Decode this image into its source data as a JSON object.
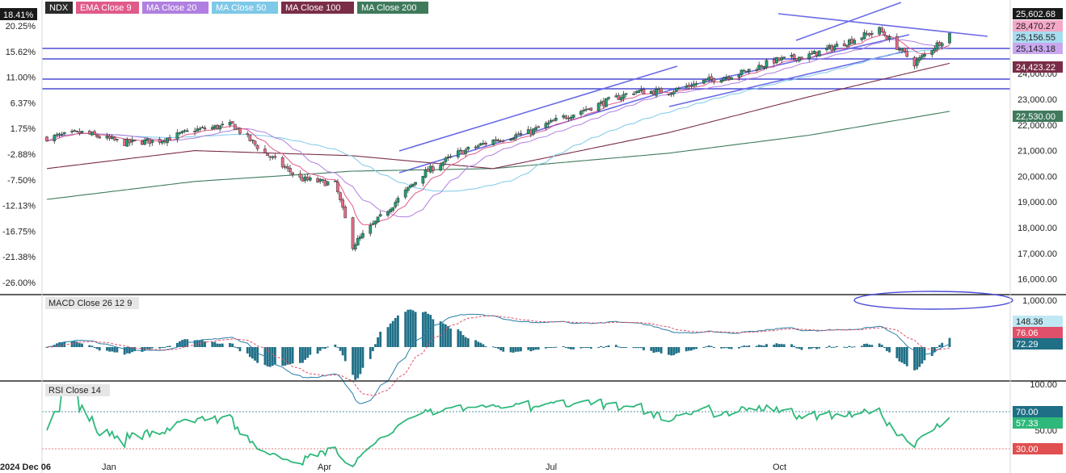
{
  "legend": {
    "symbol": {
      "text": "NDX",
      "bg": "#2b2b2b",
      "fg": "#ffffff"
    },
    "indicators": [
      {
        "name": "EMA Close 9",
        "bg": "#e05a8a"
      },
      {
        "name": "MA Close 20",
        "bg": "#b07fe0"
      },
      {
        "name": "MA Close 50",
        "bg": "#7ec8e8"
      },
      {
        "name": "MA Close 100",
        "bg": "#7a2d48"
      },
      {
        "name": "MA Close 200",
        "bg": "#3f7a5c"
      }
    ]
  },
  "price_panel": {
    "left_axis_pct": [
      "18.41%",
      "20.25%",
      "15.62%",
      "11.00%",
      "6.37%",
      "1.75%",
      "-2.88%",
      "-7.50%",
      "-12.13%",
      "-16.75%",
      "-21.38%",
      "-26.00%"
    ],
    "right_axis": [
      "25,602.68",
      "24,000.00",
      "23,000.00",
      "22,000.00",
      "21,000.00",
      "20,000.00",
      "19,000.00",
      "18,000.00",
      "17,000.00",
      "16,000.00"
    ],
    "last_value_badges": [
      {
        "text": "25,602.68",
        "color": "#1a1a1a",
        "fg": "#ffffff"
      },
      {
        "text": "28,470.27",
        "color": "#f4a8c8",
        "fg": "#222222"
      },
      {
        "text": "25,156.55",
        "color": "#a8dcf0",
        "fg": "#222222"
      },
      {
        "text": "25,143.18",
        "color": "#c9a8f0",
        "fg": "#222222"
      },
      {
        "text": "24,423.22",
        "color": "#7a2d48",
        "fg": "#ffffff"
      },
      {
        "text": "22,530.00",
        "color": "#3f7a5c",
        "fg": "#ffffff"
      }
    ]
  },
  "macd_panel": {
    "label": "MACD Close 26 12 9",
    "right_axis": [
      "1,000.00",
      "100.00"
    ],
    "last_value_badges": [
      {
        "text": "148.36",
        "color": "#bfe8f5",
        "fg": "#222222"
      },
      {
        "text": "76.06",
        "color": "#e0506a",
        "fg": "#ffffff"
      },
      {
        "text": "72.29",
        "color": "#1f6f86",
        "fg": "#ffffff"
      }
    ]
  },
  "rsi_panel": {
    "label": "RSI Close 14",
    "levels": [
      {
        "value": 70,
        "color": "#1f6f86"
      },
      {
        "value": 30,
        "color": "#e05050"
      }
    ],
    "last_value_badges": [
      {
        "text": "70.00",
        "color": "#1f6f86",
        "fg": "#ffffff"
      },
      {
        "text": "57.33",
        "color": "#2eb87a",
        "fg": "#ffffff"
      },
      {
        "text": "30.00",
        "color": "#e05050",
        "fg": "#ffffff"
      }
    ],
    "right_axis": [
      "50.00"
    ]
  },
  "x_axis": [
    "2024 Dec 06",
    "Jan",
    "Apr",
    "Jul",
    "Oct"
  ],
  "chart_data": {
    "type": "line",
    "title": "",
    "series": [
      {
        "name": "NDX",
        "x": [
          "2024-12-06",
          "2024-12-20",
          "2025-01-06",
          "2025-01-20",
          "2025-02-03",
          "2025-02-18",
          "2025-03-03",
          "2025-03-17",
          "2025-03-31",
          "2025-04-07",
          "2025-04-21",
          "2025-05-05",
          "2025-05-19",
          "2025-06-02",
          "2025-06-16",
          "2025-06-30",
          "2025-07-14",
          "2025-07-28",
          "2025-08-11",
          "2025-08-25",
          "2025-09-08",
          "2025-09-22",
          "2025-10-06",
          "2025-10-20",
          "2025-11-03",
          "2025-11-17",
          "2025-12-01"
        ],
        "values": [
          21500,
          21700,
          21300,
          21400,
          21800,
          22000,
          20900,
          19900,
          19700,
          17300,
          18700,
          20100,
          20900,
          21400,
          21700,
          22300,
          22800,
          23300,
          23300,
          23700,
          24000,
          24500,
          24700,
          25200,
          25700,
          24400,
          25550
        ]
      },
      {
        "name": "MA Close 100",
        "x": [
          "2024-12-06",
          "2025-02-03",
          "2025-04-07",
          "2025-06-02",
          "2025-08-11",
          "2025-10-06",
          "2025-12-01"
        ],
        "values": [
          20300,
          21000,
          20800,
          20300,
          21700,
          23100,
          24400
        ]
      },
      {
        "name": "MA Close 200",
        "x": [
          "2024-12-06",
          "2025-02-03",
          "2025-04-07",
          "2025-06-02",
          "2025-08-11",
          "2025-10-06",
          "2025-12-01"
        ],
        "values": [
          19100,
          19800,
          20200,
          20300,
          20900,
          21600,
          22530
        ]
      }
    ],
    "ylim": [
      15800,
      26300
    ],
    "grid": false,
    "legend": "top-left"
  }
}
